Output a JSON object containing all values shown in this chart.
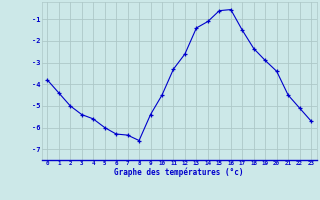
{
  "x": [
    0,
    1,
    2,
    3,
    4,
    5,
    6,
    7,
    8,
    9,
    10,
    11,
    12,
    13,
    14,
    15,
    16,
    17,
    18,
    19,
    20,
    21,
    22,
    23
  ],
  "y": [
    -3.8,
    -4.4,
    -5.0,
    -5.4,
    -5.6,
    -6.0,
    -6.3,
    -6.35,
    -6.6,
    -5.4,
    -4.5,
    -3.3,
    -2.6,
    -1.4,
    -1.1,
    -0.6,
    -0.55,
    -1.5,
    -2.35,
    -2.9,
    -3.4,
    -4.5,
    -5.1,
    -5.7
  ],
  "line_color": "#0000cc",
  "marker": "+",
  "marker_color": "#0000cc",
  "bg_color": "#cce8e8",
  "grid_color": "#adc8c8",
  "xlabel": "Graphe des températures (°c)",
  "xlabel_color": "#0000cc",
  "tick_color": "#0000cc",
  "ylim": [
    -7.5,
    -0.2
  ],
  "xlim": [
    -0.5,
    23.5
  ],
  "yticks": [
    -7,
    -6,
    -5,
    -4,
    -3,
    -2,
    -1
  ],
  "xticks": [
    0,
    1,
    2,
    3,
    4,
    5,
    6,
    7,
    8,
    9,
    10,
    11,
    12,
    13,
    14,
    15,
    16,
    17,
    18,
    19,
    20,
    21,
    22,
    23
  ]
}
